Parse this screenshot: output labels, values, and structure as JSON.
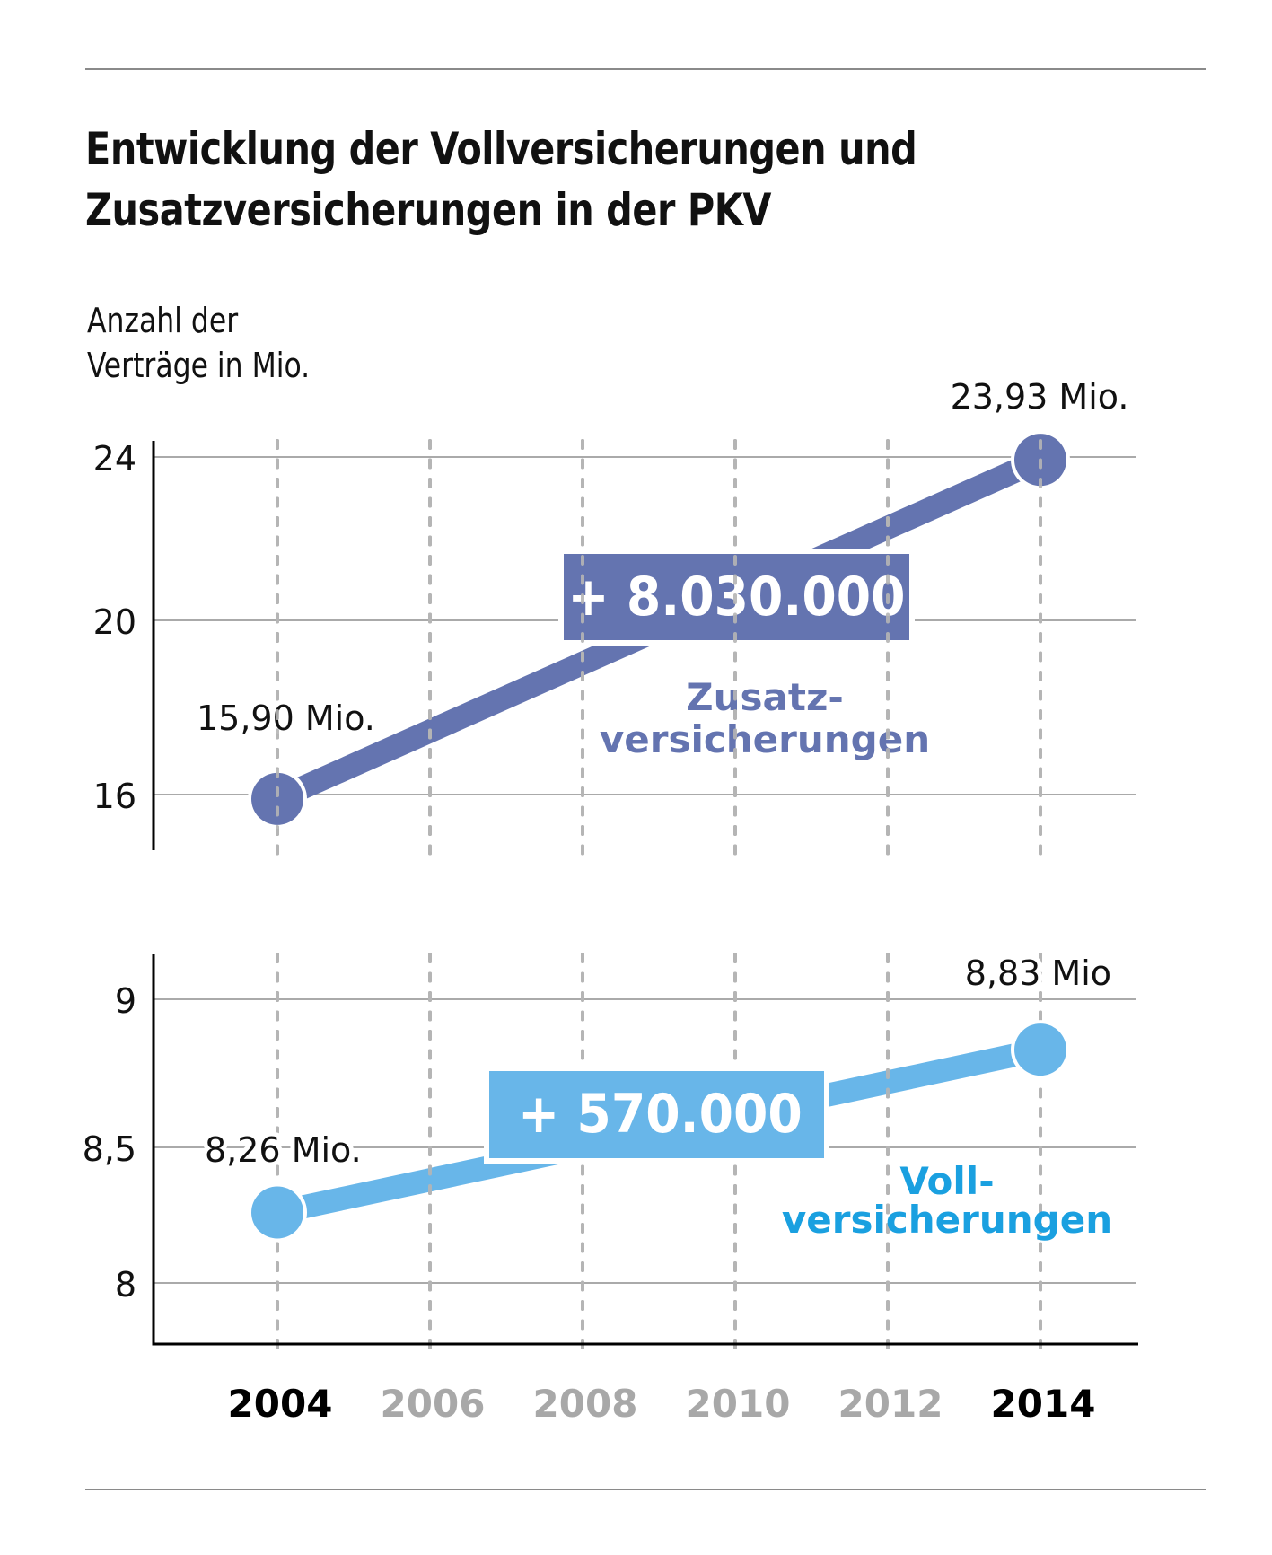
{
  "chart_data": {
    "type": "line",
    "title": "Entwicklung der Vollversicherungen und Zusatzversicherungen in der PKV",
    "title_lines": [
      "Entwicklung der Vollversicherungen und",
      "Zusatzversicherungen in der PKV"
    ],
    "ylabel": "Anzahl der Verträge in Mio.",
    "ylabel_lines": [
      "Anzahl der",
      "Verträge in Mio."
    ],
    "x_ticks": [
      {
        "label": "2004",
        "emphasis": true
      },
      {
        "label": "2006",
        "emphasis": false
      },
      {
        "label": "2008",
        "emphasis": false
      },
      {
        "label": "2010",
        "emphasis": false
      },
      {
        "label": "2012",
        "emphasis": false
      },
      {
        "label": "2014",
        "emphasis": true
      }
    ],
    "xlim": [
      2004,
      2014
    ],
    "grid": true,
    "panels": [
      {
        "name": "Zusatzversicherungen",
        "label_lines": [
          "Zusatz-",
          "versicherungen"
        ],
        "color": "#6474b0",
        "label_color": "#6474b0",
        "y_ticks": [
          {
            "value": 24,
            "label": "24"
          },
          {
            "value": 20,
            "label": "20"
          },
          {
            "value": 16,
            "label": "16"
          }
        ],
        "x": [
          2004,
          2014
        ],
        "values": [
          15.9,
          23.93
        ],
        "point_labels": [
          "15,90 Mio.",
          "23,93 Mio."
        ],
        "change_label": "+ 8.030.000"
      },
      {
        "name": "Vollversicherungen",
        "label_lines": [
          "Voll-",
          "versicherungen"
        ],
        "color": "#68b6e9",
        "label_color": "#1aa0e0",
        "y_ticks": [
          {
            "value": 9,
            "label": "9"
          },
          {
            "value": 8.5,
            "label": "8,5"
          },
          {
            "value": 8,
            "label": "8"
          }
        ],
        "x": [
          2004,
          2014
        ],
        "values": [
          8.26,
          8.83
        ],
        "point_labels": [
          "8,26 Mio.",
          "8,83 Mio"
        ],
        "change_label": "+ 570.000"
      }
    ]
  },
  "colors": {
    "text": "#111111",
    "grid": "#aaaaaa",
    "muted_year": "#a8a8a8",
    "rule": "#8a8a8a"
  }
}
